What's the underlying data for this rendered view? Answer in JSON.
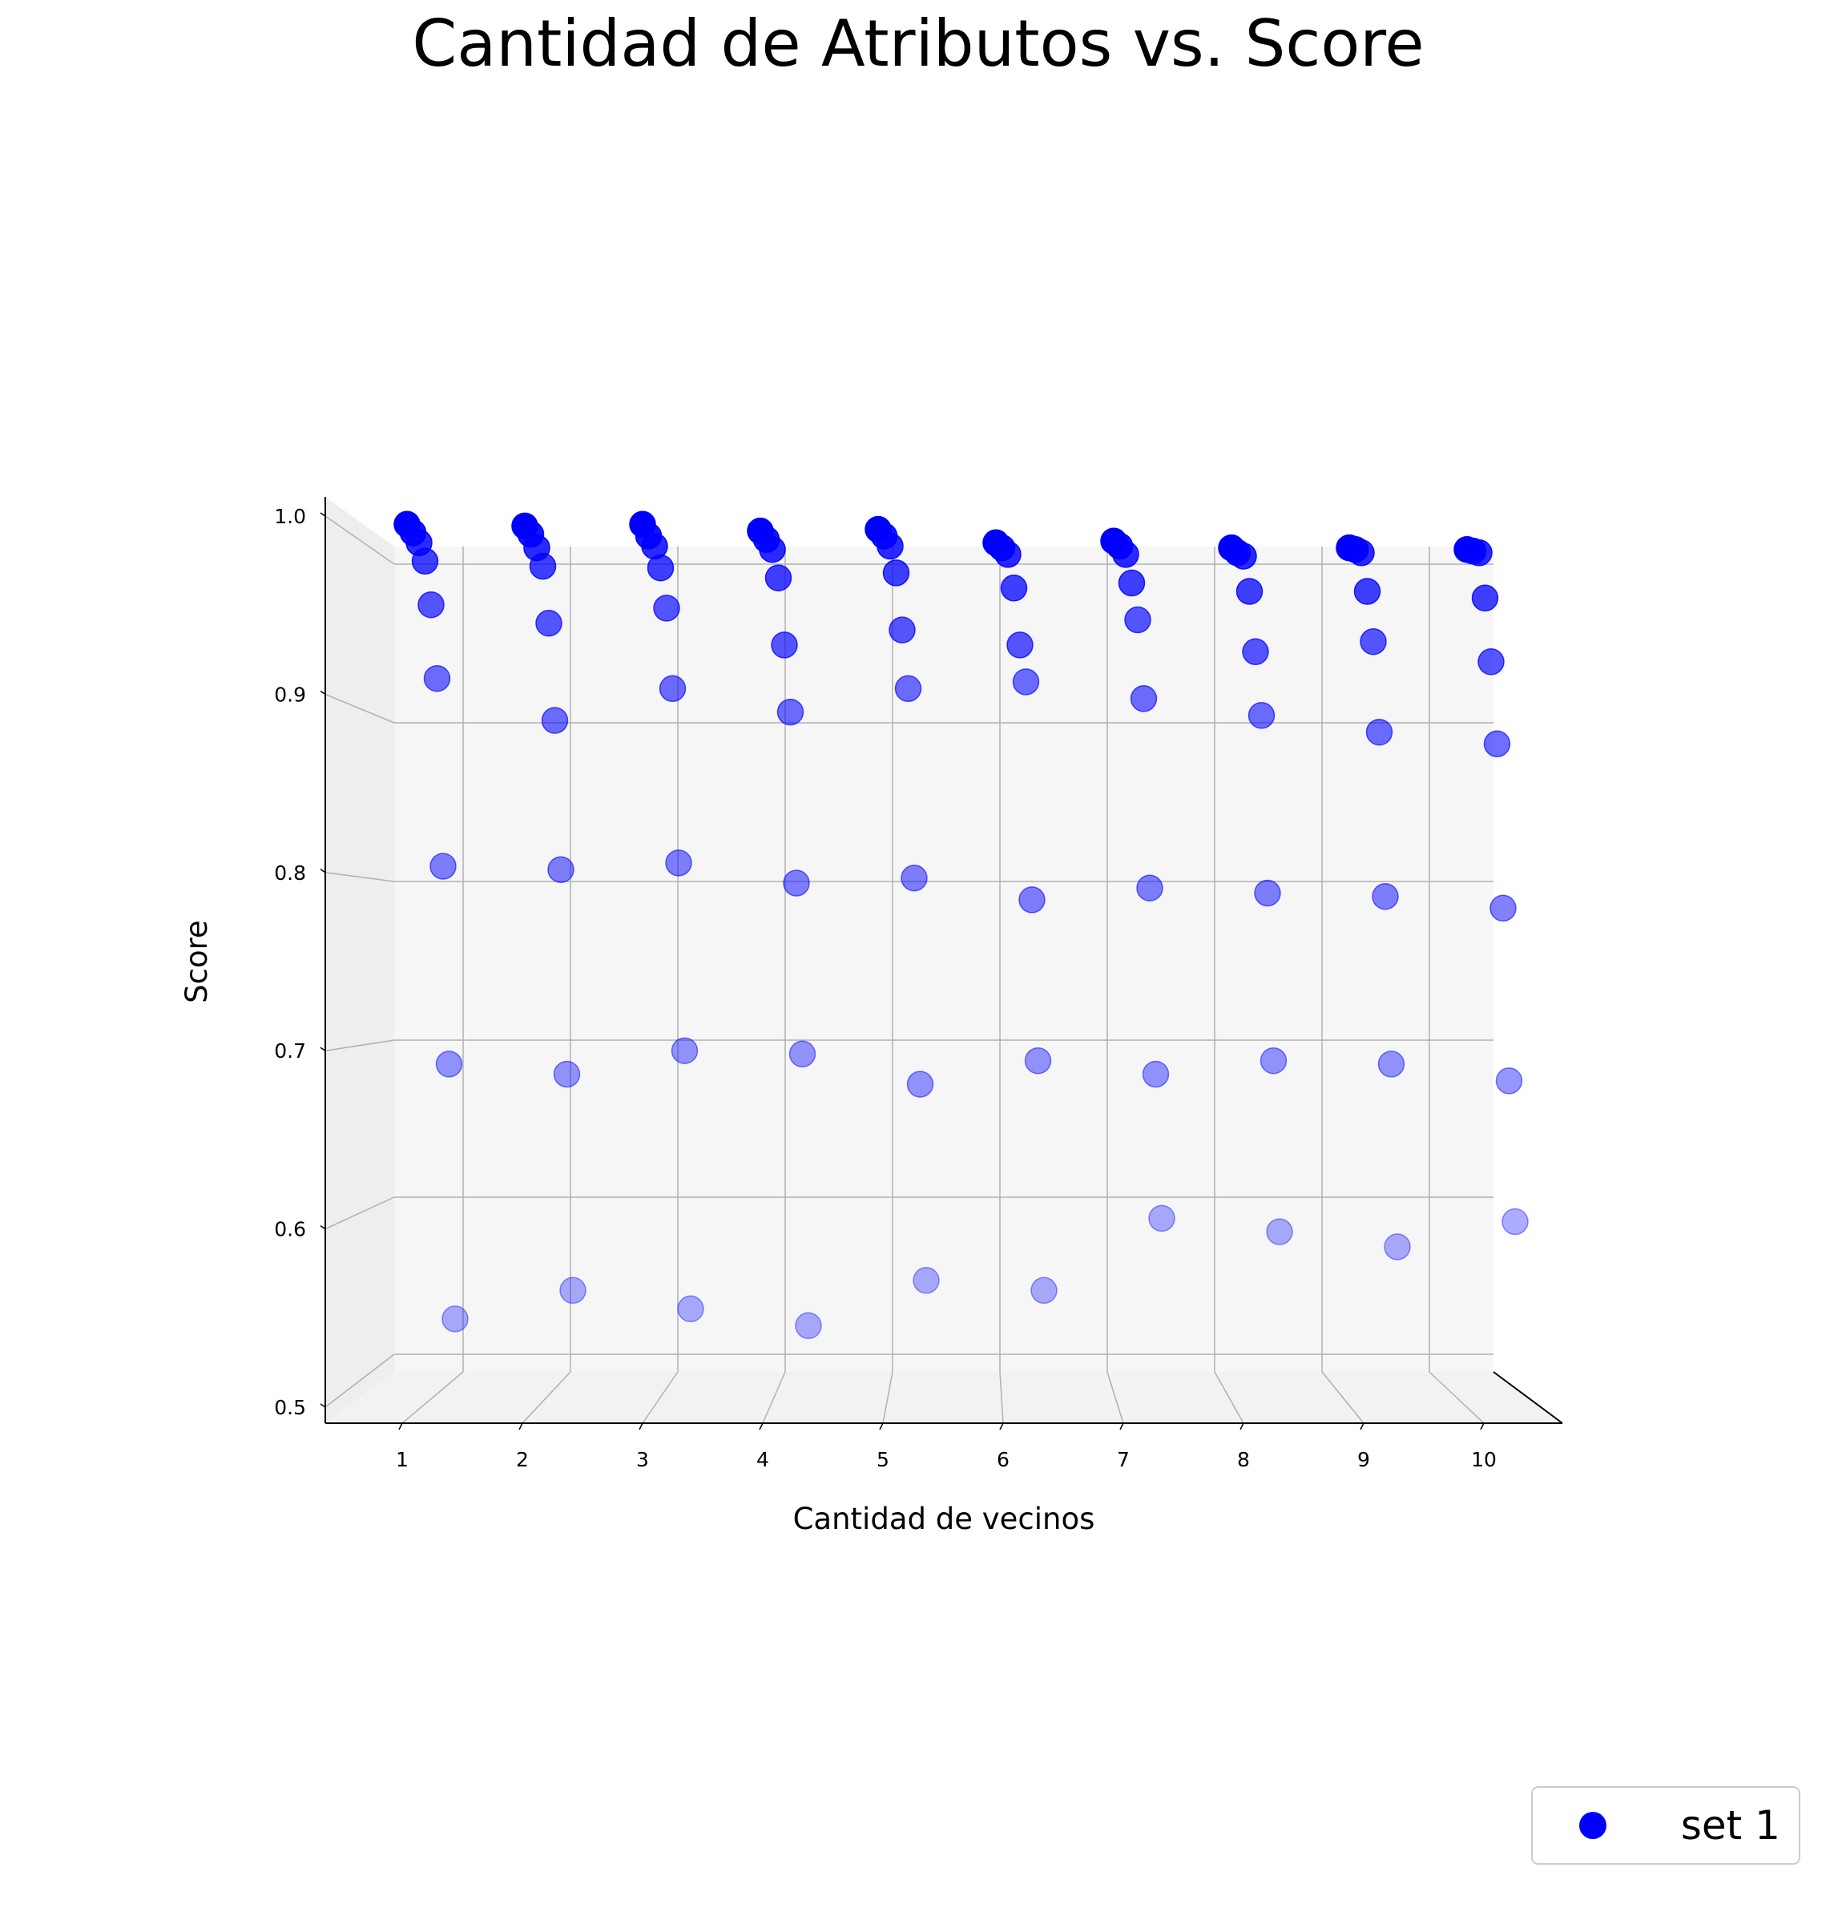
{
  "chart_data": {
    "type": "scatter",
    "title": "Cantidad de Atributos vs. Score",
    "xlabel": "Cantidad de vecinos",
    "ylabel": "Score",
    "x_ticks": [
      "1",
      "2",
      "3",
      "4",
      "5",
      "6",
      "7",
      "8",
      "9",
      "10"
    ],
    "y_ticks": [
      "0.5",
      "0.6",
      "0.7",
      "0.8",
      "0.9",
      "1.0"
    ],
    "xlim": [
      1,
      10
    ],
    "ylim": [
      0.5,
      1.0
    ],
    "grid": true,
    "legend": {
      "position": "bottom-right",
      "entries": [
        "set 1"
      ]
    },
    "colors": {
      "marker": "#0000ff",
      "pane": "#f6f6f6",
      "grid": "#b0b0b0",
      "axis": "#000000"
    },
    "series": [
      {
        "name": "set 1",
        "points": [
          {
            "x": 1,
            "y": 0.523
          },
          {
            "x": 1,
            "y": 0.675
          },
          {
            "x": 1,
            "y": 0.793
          },
          {
            "x": 1,
            "y": 0.905
          },
          {
            "x": 1,
            "y": 0.949
          },
          {
            "x": 1,
            "y": 0.975
          },
          {
            "x": 1,
            "y": 0.986
          },
          {
            "x": 1,
            "y": 0.992
          },
          {
            "x": 1,
            "y": 0.997
          },
          {
            "x": 2,
            "y": 0.54
          },
          {
            "x": 2,
            "y": 0.669
          },
          {
            "x": 2,
            "y": 0.791
          },
          {
            "x": 2,
            "y": 0.88
          },
          {
            "x": 2,
            "y": 0.938
          },
          {
            "x": 2,
            "y": 0.972
          },
          {
            "x": 2,
            "y": 0.983
          },
          {
            "x": 2,
            "y": 0.991
          },
          {
            "x": 2,
            "y": 0.996
          },
          {
            "x": 3,
            "y": 0.529
          },
          {
            "x": 3,
            "y": 0.683
          },
          {
            "x": 3,
            "y": 0.795
          },
          {
            "x": 3,
            "y": 0.899
          },
          {
            "x": 3,
            "y": 0.947
          },
          {
            "x": 3,
            "y": 0.971
          },
          {
            "x": 3,
            "y": 0.984
          },
          {
            "x": 3,
            "y": 0.99
          },
          {
            "x": 3,
            "y": 0.997
          },
          {
            "x": 4,
            "y": 0.519
          },
          {
            "x": 4,
            "y": 0.681
          },
          {
            "x": 4,
            "y": 0.783
          },
          {
            "x": 4,
            "y": 0.885
          },
          {
            "x": 4,
            "y": 0.925
          },
          {
            "x": 4,
            "y": 0.965
          },
          {
            "x": 4,
            "y": 0.982
          },
          {
            "x": 4,
            "y": 0.988
          },
          {
            "x": 4,
            "y": 0.993
          },
          {
            "x": 5,
            "y": 0.546
          },
          {
            "x": 5,
            "y": 0.663
          },
          {
            "x": 5,
            "y": 0.786
          },
          {
            "x": 5,
            "y": 0.899
          },
          {
            "x": 5,
            "y": 0.934
          },
          {
            "x": 5,
            "y": 0.968
          },
          {
            "x": 5,
            "y": 0.984
          },
          {
            "x": 5,
            "y": 0.99
          },
          {
            "x": 5,
            "y": 0.994
          },
          {
            "x": 6,
            "y": 0.54
          },
          {
            "x": 6,
            "y": 0.677
          },
          {
            "x": 6,
            "y": 0.773
          },
          {
            "x": 6,
            "y": 0.903
          },
          {
            "x": 6,
            "y": 0.925
          },
          {
            "x": 6,
            "y": 0.959
          },
          {
            "x": 6,
            "y": 0.979
          },
          {
            "x": 6,
            "y": 0.983
          },
          {
            "x": 6,
            "y": 0.986
          },
          {
            "x": 7,
            "y": 0.583
          },
          {
            "x": 7,
            "y": 0.669
          },
          {
            "x": 7,
            "y": 0.78
          },
          {
            "x": 7,
            "y": 0.893
          },
          {
            "x": 7,
            "y": 0.94
          },
          {
            "x": 7,
            "y": 0.962
          },
          {
            "x": 7,
            "y": 0.979
          },
          {
            "x": 7,
            "y": 0.984
          },
          {
            "x": 7,
            "y": 0.987
          },
          {
            "x": 8,
            "y": 0.575
          },
          {
            "x": 8,
            "y": 0.677
          },
          {
            "x": 8,
            "y": 0.777
          },
          {
            "x": 8,
            "y": 0.883
          },
          {
            "x": 8,
            "y": 0.921
          },
          {
            "x": 8,
            "y": 0.957
          },
          {
            "x": 8,
            "y": 0.978
          },
          {
            "x": 8,
            "y": 0.98
          },
          {
            "x": 8,
            "y": 0.983
          },
          {
            "x": 9,
            "y": 0.566
          },
          {
            "x": 9,
            "y": 0.675
          },
          {
            "x": 9,
            "y": 0.775
          },
          {
            "x": 9,
            "y": 0.873
          },
          {
            "x": 9,
            "y": 0.927
          },
          {
            "x": 9,
            "y": 0.957
          },
          {
            "x": 9,
            "y": 0.98
          },
          {
            "x": 9,
            "y": 0.982
          },
          {
            "x": 9,
            "y": 0.983
          },
          {
            "x": 10,
            "y": 0.581
          },
          {
            "x": 10,
            "y": 0.665
          },
          {
            "x": 10,
            "y": 0.768
          },
          {
            "x": 10,
            "y": 0.866
          },
          {
            "x": 10,
            "y": 0.915
          },
          {
            "x": 10,
            "y": 0.953
          },
          {
            "x": 10,
            "y": 0.98
          },
          {
            "x": 10,
            "y": 0.981
          },
          {
            "x": 10,
            "y": 0.982
          }
        ]
      }
    ]
  }
}
